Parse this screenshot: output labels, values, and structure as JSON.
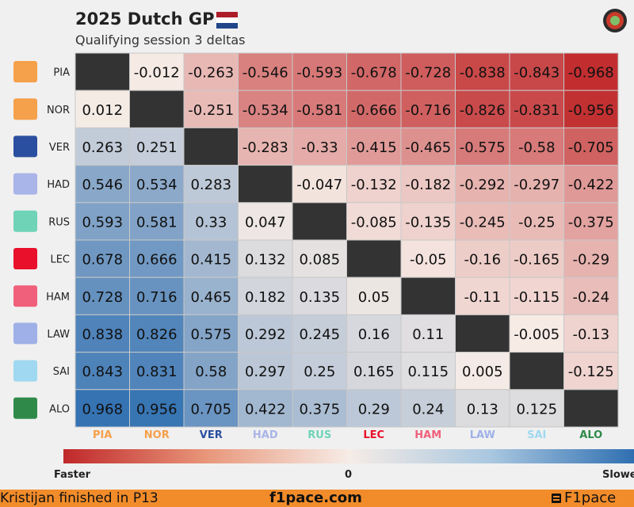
{
  "header": {
    "title": "2025 Dutch GP",
    "subtitle": "Qualifying session 3 deltas",
    "flag_colors": [
      "#ae1c28",
      "#ffffff",
      "#21468b"
    ],
    "logo_icon": "f1pace-logo-icon"
  },
  "chart_data": {
    "type": "heatmap",
    "title": "2025 Dutch GP",
    "subtitle": "Qualifying session 3 deltas",
    "drivers": [
      "PIA",
      "NOR",
      "VER",
      "HAD",
      "RUS",
      "LEC",
      "HAM",
      "LAW",
      "SAI",
      "ALO"
    ],
    "driver_colors": [
      "#f5a04a",
      "#f5a04a",
      "#2b4fa0",
      "#a9b4e8",
      "#6fd3b8",
      "#e8102a",
      "#f0607a",
      "#9fb0e8",
      "#9fd8f0",
      "#2f8a4a"
    ],
    "team_icons": [
      "mclaren-icon",
      "mclaren-icon",
      "red-bull-icon",
      "racing-bulls-icon",
      "mercedes-icon",
      "ferrari-icon",
      "ferrari-icon",
      "racing-bulls-icon",
      "williams-icon",
      "aston-martin-icon"
    ],
    "matrix": [
      [
        null,
        -0.012,
        -0.263,
        -0.546,
        -0.593,
        -0.678,
        -0.728,
        -0.838,
        -0.843,
        -0.968
      ],
      [
        0.012,
        null,
        -0.251,
        -0.534,
        -0.581,
        -0.666,
        -0.716,
        -0.826,
        -0.831,
        -0.956
      ],
      [
        0.263,
        0.251,
        null,
        -0.283,
        -0.33,
        -0.415,
        -0.465,
        -0.575,
        -0.58,
        -0.705
      ],
      [
        0.546,
        0.534,
        0.283,
        null,
        -0.047,
        -0.132,
        -0.182,
        -0.292,
        -0.297,
        -0.422
      ],
      [
        0.593,
        0.581,
        0.33,
        0.047,
        null,
        -0.085,
        -0.135,
        -0.245,
        -0.25,
        -0.375
      ],
      [
        0.678,
        0.666,
        0.415,
        0.132,
        0.085,
        null,
        -0.05,
        -0.16,
        -0.165,
        -0.29
      ],
      [
        0.728,
        0.716,
        0.465,
        0.182,
        0.135,
        0.05,
        null,
        -0.11,
        -0.115,
        -0.24
      ],
      [
        0.838,
        0.826,
        0.575,
        0.292,
        0.245,
        0.16,
        0.11,
        null,
        -0.005,
        -0.13
      ],
      [
        0.843,
        0.831,
        0.58,
        0.297,
        0.25,
        0.165,
        0.115,
        0.005,
        null,
        -0.125
      ],
      [
        0.968,
        0.956,
        0.705,
        0.422,
        0.375,
        0.29,
        0.24,
        0.13,
        0.125,
        null
      ]
    ],
    "color_scale": {
      "min": -1.0,
      "max": 1.0,
      "negative_color": "#c0282a",
      "neutral_color": "#f6ece6",
      "positive_color": "#2f6fb1",
      "diagonal_color": "#333333"
    },
    "legend": {
      "left_label": "Faster",
      "center_label": "0",
      "right_label": "Slower"
    }
  },
  "footer": {
    "left_text": "Kristijan finished in P13",
    "center_text": "f1pace.com",
    "right_text": "F1pace",
    "background": "#f28c2a"
  }
}
